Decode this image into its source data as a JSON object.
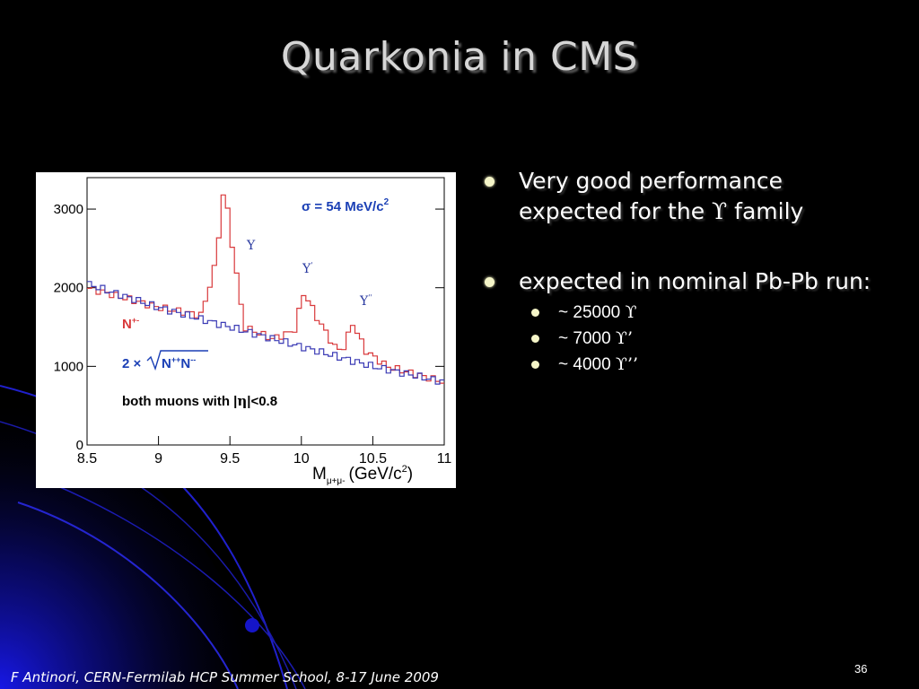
{
  "slide": {
    "title": "Quarkonia in CMS",
    "footer": "F Antinori, CERN-Fermilab HCP Summer School, 8-17 June 2009",
    "page_number": "36"
  },
  "bullets": [
    {
      "text_a": "Very good performance",
      "text_b": "expected for the ",
      "sym": "ϒ",
      "text_c": " family"
    },
    {
      "text": "expected in nominal Pb-Pb run:",
      "sub": [
        {
          "text": "~ 25000 ",
          "sym": "ϒ"
        },
        {
          "text": "~ 7000 ",
          "sym": "ϒ’"
        },
        {
          "text": "~ 4000 ",
          "sym": "ϒ’’"
        }
      ]
    }
  ],
  "chart_data": {
    "type": "line",
    "xlabel": "M",
    "xlabel_sub": "μ+μ-",
    "xlabel_unit": "(GeV/c",
    "xlabel_unit_sup": "2",
    "xlabel_unit_end": ")",
    "xlim": [
      8.5,
      11
    ],
    "ylim": [
      0,
      3400
    ],
    "x_ticks": [
      "8.5",
      "9",
      "9.5",
      "10",
      "10.5",
      "11"
    ],
    "y_ticks": [
      "0",
      "1000",
      "2000",
      "3000"
    ],
    "sigma_label": "σ = 54 MeV/c",
    "sigma_label_sup": "2",
    "cut_label_a": "both muons with |",
    "cut_label_b": "η",
    "cut_label_c": "|<0.8",
    "peak_labels": [
      {
        "text": "Y",
        "sup": ""
      },
      {
        "text": "Y",
        "sup": "'"
      },
      {
        "text": "Y",
        "sup": "''"
      }
    ],
    "series": [
      {
        "name": "N+-",
        "name_main": "N",
        "name_sup": "+-",
        "color": "#d9393b",
        "x": [
          8.5,
          9.0,
          9.3,
          9.4,
          9.46,
          9.52,
          9.6,
          9.8,
          9.95,
          10.02,
          10.1,
          10.25,
          10.3,
          10.36,
          10.45,
          10.6,
          11.0
        ],
        "y": [
          2000,
          1750,
          1650,
          2300,
          3300,
          2500,
          1500,
          1350,
          1450,
          1950,
          1650,
          1200,
          1250,
          1550,
          1200,
          1000,
          800
        ]
      },
      {
        "name": "2×√N++N--",
        "name_a": "2 ×",
        "name_b": "N",
        "name_b_sup": "++",
        "name_c": "N",
        "name_c_sup": "--",
        "color": "#3b3bb5",
        "x": [
          8.5,
          9.0,
          9.5,
          10.0,
          10.5,
          11.0
        ],
        "y": [
          2050,
          1750,
          1500,
          1250,
          1000,
          800
        ]
      }
    ],
    "grid": false,
    "legend": "left"
  },
  "colors": {
    "background": "#000000",
    "accent_blue": "#1a1aff",
    "title": "#d6d6d6",
    "bullet": "#f5f5c8"
  }
}
